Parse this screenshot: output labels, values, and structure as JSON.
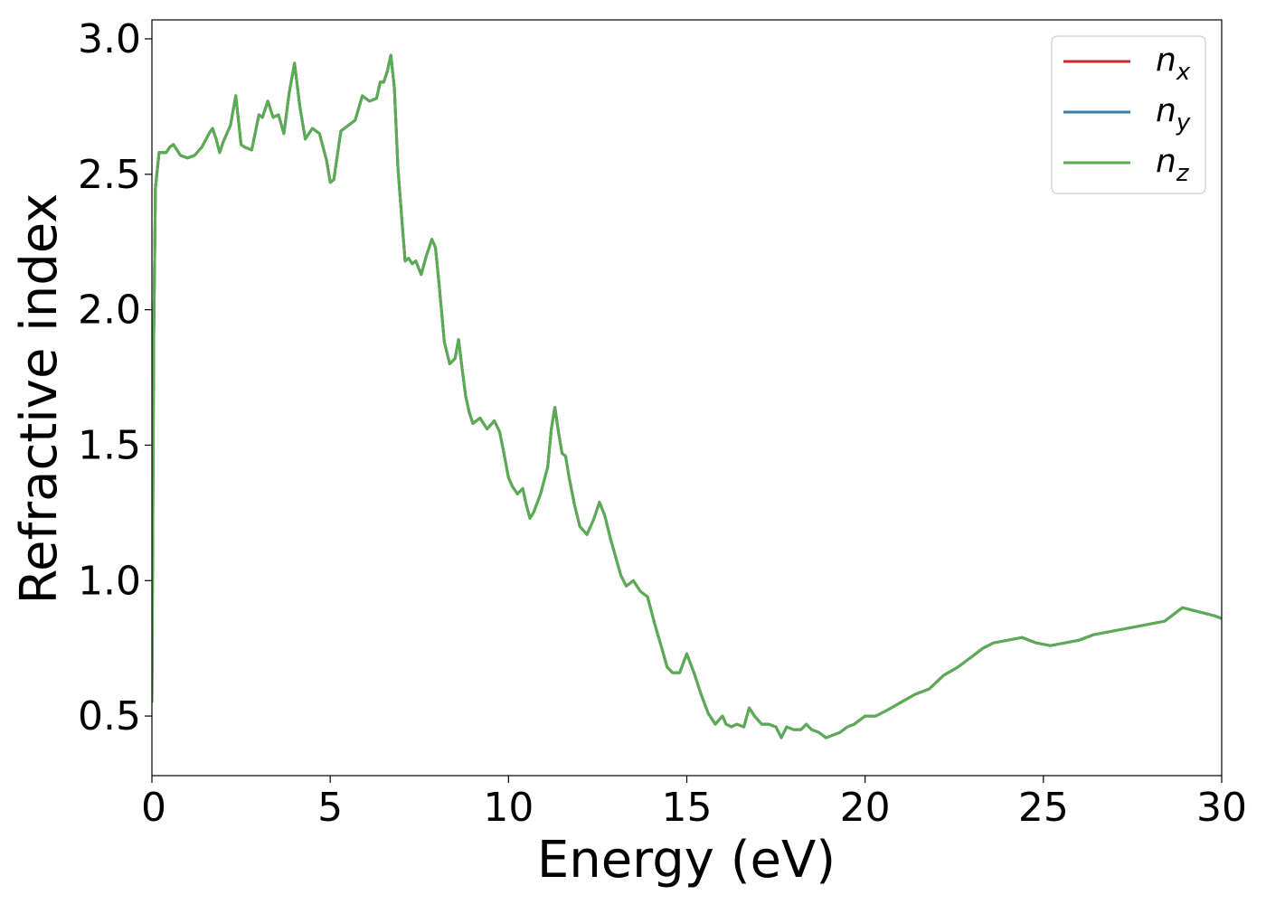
{
  "chart_data": {
    "type": "line",
    "xlabel": "Energy (eV)",
    "ylabel": "Refractive index",
    "xlim": [
      0,
      30
    ],
    "ylim": [
      0.28,
      3.07
    ],
    "xticks": [
      0,
      5,
      10,
      15,
      20,
      25,
      30
    ],
    "xtick_labels": [
      "0",
      "5",
      "10",
      "15",
      "20",
      "25",
      "30"
    ],
    "yticks": [
      0.5,
      1.0,
      1.5,
      2.0,
      2.5,
      3.0
    ],
    "ytick_labels": [
      "0.5",
      "1.0",
      "1.5",
      "2.0",
      "2.5",
      "3.0"
    ],
    "grid": false,
    "legend_position": "top-right",
    "x": [
      0.0,
      0.05,
      0.1,
      0.2,
      0.3,
      0.4,
      0.5,
      0.6,
      0.8,
      1.0,
      1.2,
      1.4,
      1.6,
      1.7,
      1.8,
      1.9,
      2.0,
      2.2,
      2.35,
      2.5,
      2.6,
      2.8,
      3.0,
      3.1,
      3.25,
      3.4,
      3.55,
      3.7,
      3.85,
      4.0,
      4.15,
      4.3,
      4.5,
      4.7,
      4.9,
      5.0,
      5.1,
      5.3,
      5.5,
      5.7,
      5.9,
      6.1,
      6.3,
      6.4,
      6.5,
      6.6,
      6.7,
      6.8,
      6.9,
      7.0,
      7.1,
      7.2,
      7.3,
      7.4,
      7.55,
      7.7,
      7.85,
      7.95,
      8.05,
      8.2,
      8.35,
      8.5,
      8.6,
      8.7,
      8.8,
      8.9,
      9.0,
      9.2,
      9.4,
      9.6,
      9.75,
      9.9,
      10.0,
      10.1,
      10.25,
      10.4,
      10.5,
      10.6,
      10.7,
      10.9,
      11.1,
      11.2,
      11.3,
      11.4,
      11.5,
      11.6,
      11.7,
      11.85,
      12.0,
      12.2,
      12.4,
      12.55,
      12.7,
      12.85,
      13.0,
      13.15,
      13.3,
      13.5,
      13.7,
      13.9,
      14.1,
      14.3,
      14.45,
      14.6,
      14.8,
      15.0,
      15.2,
      15.4,
      15.6,
      15.8,
      16.0,
      16.1,
      16.25,
      16.4,
      16.6,
      16.75,
      16.9,
      17.1,
      17.3,
      17.5,
      17.65,
      17.8,
      18.0,
      18.2,
      18.35,
      18.5,
      18.7,
      18.9,
      19.1,
      19.3,
      19.5,
      19.7,
      20.0,
      20.3,
      20.6,
      21.0,
      21.4,
      21.8,
      22.2,
      22.6,
      23.0,
      23.3,
      23.6,
      24.0,
      24.4,
      24.8,
      25.2,
      25.6,
      26.0,
      26.4,
      26.8,
      27.2,
      27.6,
      28.0,
      28.4,
      28.7,
      28.9,
      29.2,
      29.5,
      29.8,
      30.0
    ],
    "series": [
      {
        "name": "n_x",
        "label_base": "n",
        "label_sub": "x",
        "color": "#d62728"
      },
      {
        "name": "n_y",
        "label_base": "n",
        "label_sub": "y",
        "color": "#3a7ea8"
      },
      {
        "name": "n_z",
        "label_base": "n",
        "label_sub": "z",
        "color": "#5aac52",
        "values": [
          0.55,
          1.9,
          2.45,
          2.58,
          2.58,
          2.58,
          2.6,
          2.61,
          2.57,
          2.56,
          2.57,
          2.6,
          2.65,
          2.67,
          2.63,
          2.58,
          2.62,
          2.68,
          2.79,
          2.61,
          2.6,
          2.59,
          2.72,
          2.71,
          2.77,
          2.71,
          2.72,
          2.65,
          2.8,
          2.91,
          2.75,
          2.63,
          2.67,
          2.65,
          2.55,
          2.47,
          2.48,
          2.66,
          2.68,
          2.7,
          2.79,
          2.77,
          2.78,
          2.84,
          2.84,
          2.88,
          2.94,
          2.82,
          2.52,
          2.35,
          2.18,
          2.19,
          2.17,
          2.18,
          2.13,
          2.2,
          2.26,
          2.23,
          2.1,
          1.88,
          1.8,
          1.82,
          1.89,
          1.78,
          1.68,
          1.62,
          1.58,
          1.6,
          1.56,
          1.59,
          1.55,
          1.45,
          1.38,
          1.35,
          1.32,
          1.34,
          1.28,
          1.23,
          1.25,
          1.32,
          1.42,
          1.56,
          1.64,
          1.55,
          1.47,
          1.46,
          1.38,
          1.28,
          1.2,
          1.17,
          1.23,
          1.29,
          1.24,
          1.16,
          1.09,
          1.02,
          0.98,
          1.0,
          0.96,
          0.94,
          0.84,
          0.75,
          0.68,
          0.66,
          0.66,
          0.73,
          0.66,
          0.58,
          0.51,
          0.47,
          0.5,
          0.47,
          0.46,
          0.47,
          0.46,
          0.53,
          0.5,
          0.47,
          0.47,
          0.46,
          0.42,
          0.46,
          0.45,
          0.45,
          0.47,
          0.45,
          0.44,
          0.42,
          0.43,
          0.44,
          0.46,
          0.47,
          0.5,
          0.5,
          0.52,
          0.55,
          0.58,
          0.6,
          0.65,
          0.68,
          0.72,
          0.75,
          0.77,
          0.78,
          0.79,
          0.77,
          0.76,
          0.77,
          0.78,
          0.8,
          0.81,
          0.82,
          0.83,
          0.84,
          0.85,
          0.88,
          0.9,
          0.89,
          0.88,
          0.87,
          0.86
        ]
      }
    ]
  }
}
